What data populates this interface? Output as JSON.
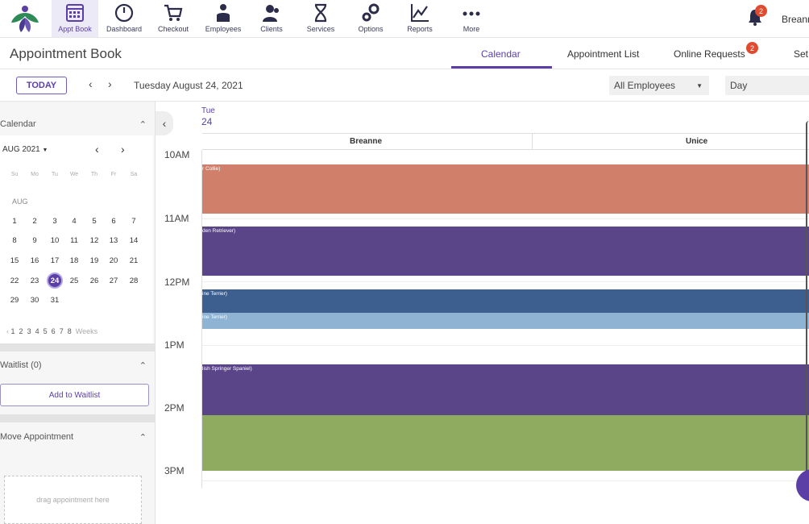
{
  "nav": {
    "items": [
      {
        "label": "Appt Book",
        "icon": "calendar-grid-icon"
      },
      {
        "label": "Dashboard",
        "icon": "speedometer-icon"
      },
      {
        "label": "Checkout",
        "icon": "shopping-cart-icon"
      },
      {
        "label": "Employees",
        "icon": "employees-icon"
      },
      {
        "label": "Clients",
        "icon": "clients-icon"
      },
      {
        "label": "Services",
        "icon": "hourglass-icon"
      },
      {
        "label": "Options",
        "icon": "gears-icon"
      },
      {
        "label": "Reports",
        "icon": "line-chart-icon"
      },
      {
        "label": "More",
        "icon": "more-dots-icon"
      }
    ],
    "notification_count": "2",
    "user_name": "Breann"
  },
  "header": {
    "title": "Appointment Book",
    "tabs": [
      {
        "label": "Calendar"
      },
      {
        "label": "Appointment List"
      },
      {
        "label": "Online Requests"
      },
      {
        "label": "Set"
      }
    ],
    "online_requests_badge": "2"
  },
  "toolbar": {
    "today_label": "TODAY",
    "prev": "‹",
    "next": "›",
    "date": "Tuesday August 24, 2021",
    "employee_select": "All Employees",
    "view_select": "Day"
  },
  "sidebar": {
    "calendar_title": "Calendar",
    "month_select": "AUG 2021",
    "weekday_headers": [
      "Su",
      "Mo",
      "Tu",
      "We",
      "Th",
      "Fr",
      "Sa"
    ],
    "month_label": "AUG",
    "weeks": [
      [
        "1",
        "2",
        "3",
        "4",
        "5",
        "6",
        "7"
      ],
      [
        "8",
        "9",
        "10",
        "11",
        "12",
        "13",
        "14"
      ],
      [
        "15",
        "16",
        "17",
        "18",
        "19",
        "20",
        "21"
      ],
      [
        "22",
        "23",
        "24",
        "25",
        "26",
        "27",
        "28"
      ],
      [
        "29",
        "30",
        "31"
      ]
    ],
    "selected_day": "24",
    "week_jump": [
      "1",
      "2",
      "3",
      "4",
      "5",
      "6",
      "7",
      "8"
    ],
    "weeks_label": "Weeks",
    "waitlist_title": "Waitlist (0)",
    "add_waitlist_label": "Add to Waitlist",
    "move_title": "Move Appointment",
    "drag_placeholder": "drag appointment here"
  },
  "calendar": {
    "day_abbrev": "Tue",
    "day_number": "24",
    "columns": [
      "Breanne",
      "Unice"
    ],
    "times": [
      "10AM",
      "11AM",
      "12PM",
      "1PM",
      "2PM",
      "3PM"
    ],
    "appointments": [
      {
        "label": "r Collie)",
        "color": "#d07f6a"
      },
      {
        "label": "den Retriever)",
        "color": "#5b4589"
      },
      {
        "label": "ine Terrier)",
        "color": "#3c5f8f"
      },
      {
        "label": "ine Terrier)",
        "color": "#8fb3d2"
      },
      {
        "label": "lish Springer Spaniel)",
        "color": "#5b4589"
      },
      {
        "label": "",
        "color": "#8fab5f"
      }
    ]
  },
  "colors": {
    "accent": "#5b3fa6",
    "badge": "#e04a2e"
  }
}
